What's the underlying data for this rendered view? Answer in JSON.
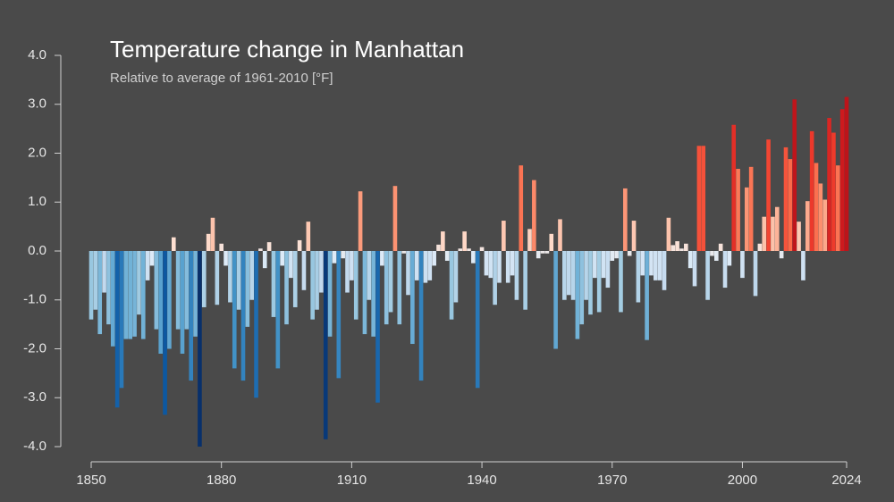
{
  "chart_data": {
    "type": "bar",
    "title": "Temperature change in Manhattan",
    "subtitle": "Relative to average of 1961-2010  [°F]",
    "x": [
      1850,
      1851,
      1852,
      1853,
      1854,
      1855,
      1856,
      1857,
      1858,
      1859,
      1860,
      1861,
      1862,
      1863,
      1864,
      1865,
      1866,
      1867,
      1868,
      1869,
      1870,
      1871,
      1872,
      1873,
      1874,
      1875,
      1876,
      1877,
      1878,
      1879,
      1880,
      1881,
      1882,
      1883,
      1884,
      1885,
      1886,
      1887,
      1888,
      1889,
      1890,
      1891,
      1892,
      1893,
      1894,
      1895,
      1896,
      1897,
      1898,
      1899,
      1900,
      1901,
      1902,
      1903,
      1904,
      1905,
      1906,
      1907,
      1908,
      1909,
      1910,
      1911,
      1912,
      1913,
      1914,
      1915,
      1916,
      1917,
      1918,
      1919,
      1920,
      1921,
      1922,
      1923,
      1924,
      1925,
      1926,
      1927,
      1928,
      1929,
      1930,
      1931,
      1932,
      1933,
      1934,
      1935,
      1936,
      1937,
      1938,
      1939,
      1940,
      1941,
      1942,
      1943,
      1944,
      1945,
      1946,
      1947,
      1948,
      1949,
      1950,
      1951,
      1952,
      1953,
      1954,
      1955,
      1956,
      1957,
      1958,
      1959,
      1960,
      1961,
      1962,
      1963,
      1964,
      1965,
      1966,
      1967,
      1968,
      1969,
      1970,
      1971,
      1972,
      1973,
      1974,
      1975,
      1976,
      1977,
      1978,
      1979,
      1980,
      1981,
      1982,
      1983,
      1984,
      1985,
      1986,
      1987,
      1988,
      1989,
      1990,
      1991,
      1992,
      1993,
      1994,
      1995,
      1996,
      1997,
      1998,
      1999,
      2000,
      2001,
      2002,
      2003,
      2004,
      2005,
      2006,
      2007,
      2008,
      2009,
      2010,
      2011,
      2012,
      2013,
      2014,
      2015,
      2016,
      2017,
      2018,
      2019,
      2020,
      2021,
      2022,
      2023,
      2024
    ],
    "values": [
      -1.4,
      -1.2,
      -1.7,
      -0.85,
      -1.5,
      -1.95,
      -3.2,
      -2.8,
      -1.8,
      -1.8,
      -1.75,
      -1.3,
      -1.8,
      -0.6,
      -0.3,
      -1.6,
      -2.1,
      -3.35,
      -2.0,
      0.28,
      -1.6,
      -2.1,
      -1.6,
      -2.65,
      -1.75,
      -4.0,
      -1.15,
      0.35,
      0.68,
      -1.1,
      0.15,
      -0.3,
      -1.05,
      -2.4,
      -1.2,
      -2.65,
      -1.55,
      -1.0,
      -3.0,
      0.05,
      -0.35,
      0.18,
      -1.35,
      -2.4,
      -0.3,
      -1.5,
      -0.55,
      -1.15,
      0.22,
      -0.8,
      0.6,
      -1.4,
      -1.2,
      -0.85,
      -3.85,
      -1.75,
      -0.25,
      -2.6,
      -0.15,
      -0.85,
      -0.6,
      -1.4,
      1.22,
      -1.7,
      -1.0,
      -1.75,
      -3.1,
      -0.3,
      -1.5,
      -1.25,
      1.33,
      -1.5,
      -0.05,
      -0.9,
      -1.9,
      -0.6,
      -2.65,
      -0.65,
      -0.6,
      -0.3,
      0.13,
      0.4,
      -0.2,
      -1.4,
      -1.05,
      0.05,
      0.4,
      0.05,
      -0.25,
      -2.8,
      0.08,
      -0.5,
      -0.55,
      -1.1,
      -0.65,
      0.62,
      -0.65,
      -0.5,
      -1.0,
      1.75,
      -1.2,
      0.45,
      1.45,
      -0.15,
      -0.05,
      -0.05,
      0.35,
      -2.0,
      0.65,
      -1.0,
      -0.9,
      -1.0,
      -1.8,
      -1.5,
      -1.0,
      -1.3,
      -0.55,
      -1.25,
      -0.55,
      -0.75,
      -0.2,
      -0.15,
      -1.25,
      1.28,
      -0.1,
      0.62,
      -1.05,
      -0.5,
      -1.82,
      -0.5,
      -0.6,
      -0.6,
      -0.8,
      0.68,
      0.12,
      0.2,
      0.05,
      0.15,
      -0.35,
      -0.72,
      2.15,
      2.15,
      -1.0,
      -0.1,
      -0.2,
      0.15,
      -0.75,
      -0.3,
      2.58,
      1.68,
      -0.55,
      1.3,
      1.72,
      -0.92,
      0.15,
      0.7,
      2.28,
      0.7,
      0.9,
      -0.15,
      2.12,
      1.88,
      3.1,
      0.6,
      -0.6,
      1.02,
      2.45,
      1.8,
      1.38,
      1.05,
      2.72,
      2.42,
      1.75,
      2.9,
      3.15
    ],
    "colormap": [
      "#08306b",
      "#08519c",
      "#2171b5",
      "#4292c6",
      "#6baed6",
      "#9ecae1",
      "#c6dbef",
      "#deebf7",
      "#fee0d2",
      "#fcbba1",
      "#fc9272",
      "#fb6a4a",
      "#ef3b2c",
      "#cb181d",
      "#a50f15",
      "#67000d"
    ],
    "xlim": [
      1850,
      2024
    ],
    "xticks": [
      1850,
      1880,
      1910,
      1940,
      1970,
      2000,
      2024
    ],
    "ylim": [
      -4,
      4
    ],
    "yticks": [
      {
        "value": 4,
        "label": "4.0"
      },
      {
        "value": 3,
        "label": "3.0"
      },
      {
        "value": 2,
        "label": "2.0"
      },
      {
        "value": 1,
        "label": "1.0"
      },
      {
        "value": 0,
        "label": "0.0"
      },
      {
        "value": -1,
        "label": "-1.0"
      },
      {
        "value": -2,
        "label": "-2.0"
      },
      {
        "value": -3,
        "label": "-3.0"
      },
      {
        "value": -4,
        "label": "-4.0"
      }
    ]
  }
}
